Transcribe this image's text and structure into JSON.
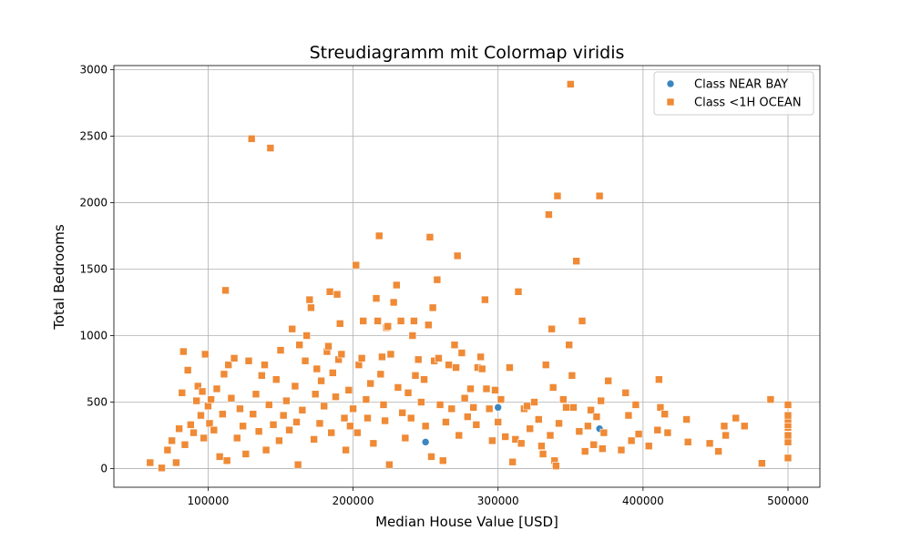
{
  "chart_data": {
    "type": "scatter",
    "title": "Streudiagramm mit Colormap viridis",
    "xlabel": "Median House Value [USD]",
    "ylabel": "Total Bedrooms",
    "xlim": [
      35000,
      522000
    ],
    "ylim": [
      -140,
      3030
    ],
    "xticks": [
      100000,
      200000,
      300000,
      400000,
      500000
    ],
    "xtick_labels": [
      "100000",
      "200000",
      "300000",
      "400000",
      "500000"
    ],
    "yticks": [
      0,
      500,
      1000,
      1500,
      2000,
      2500,
      3000
    ],
    "ytick_labels": [
      "0",
      "500",
      "1000",
      "1500",
      "2000",
      "2500",
      "3000"
    ],
    "grid": true,
    "legend_position": "top-right",
    "series": [
      {
        "name": "Class NEAR BAY",
        "marker": "circle",
        "color": "#3b86c0",
        "points": [
          [
            370000,
            300
          ],
          [
            300000,
            460
          ],
          [
            250000,
            200
          ]
        ]
      },
      {
        "name": "Class <1H OCEAN",
        "marker": "square",
        "color": "#ef8a36",
        "points": [
          [
            60000,
            45
          ],
          [
            68000,
            5
          ],
          [
            72000,
            140
          ],
          [
            75000,
            210
          ],
          [
            78000,
            45
          ],
          [
            80000,
            300
          ],
          [
            82000,
            570
          ],
          [
            83000,
            880
          ],
          [
            84000,
            180
          ],
          [
            86000,
            740
          ],
          [
            88000,
            330
          ],
          [
            90000,
            270
          ],
          [
            92000,
            510
          ],
          [
            93000,
            620
          ],
          [
            95000,
            400
          ],
          [
            96000,
            580
          ],
          [
            97000,
            230
          ],
          [
            98000,
            860
          ],
          [
            100000,
            470
          ],
          [
            101000,
            340
          ],
          [
            102000,
            520
          ],
          [
            104000,
            290
          ],
          [
            106000,
            600
          ],
          [
            108000,
            90
          ],
          [
            110000,
            410
          ],
          [
            111000,
            710
          ],
          [
            112000,
            1340
          ],
          [
            113000,
            60
          ],
          [
            114000,
            780
          ],
          [
            116000,
            530
          ],
          [
            118000,
            830
          ],
          [
            120000,
            230
          ],
          [
            122000,
            450
          ],
          [
            124000,
            320
          ],
          [
            126000,
            110
          ],
          [
            128000,
            810
          ],
          [
            130000,
            2480
          ],
          [
            131000,
            410
          ],
          [
            133000,
            560
          ],
          [
            135000,
            280
          ],
          [
            137000,
            700
          ],
          [
            139000,
            780
          ],
          [
            140000,
            140
          ],
          [
            142000,
            480
          ],
          [
            143000,
            2410
          ],
          [
            145000,
            330
          ],
          [
            147000,
            670
          ],
          [
            149000,
            210
          ],
          [
            150000,
            890
          ],
          [
            152000,
            400
          ],
          [
            154000,
            510
          ],
          [
            156000,
            290
          ],
          [
            158000,
            1050
          ],
          [
            160000,
            620
          ],
          [
            161000,
            350
          ],
          [
            162000,
            30
          ],
          [
            163000,
            930
          ],
          [
            165000,
            440
          ],
          [
            167000,
            810
          ],
          [
            168000,
            1000
          ],
          [
            170000,
            1270
          ],
          [
            171000,
            1210
          ],
          [
            173000,
            220
          ],
          [
            174000,
            560
          ],
          [
            175000,
            750
          ],
          [
            177000,
            340
          ],
          [
            178000,
            660
          ],
          [
            180000,
            470
          ],
          [
            182000,
            880
          ],
          [
            183000,
            920
          ],
          [
            184000,
            1330
          ],
          [
            185000,
            270
          ],
          [
            186000,
            720
          ],
          [
            188000,
            540
          ],
          [
            189000,
            1310
          ],
          [
            190000,
            820
          ],
          [
            191000,
            1090
          ],
          [
            192000,
            860
          ],
          [
            194000,
            380
          ],
          [
            195000,
            140
          ],
          [
            197000,
            590
          ],
          [
            198000,
            320
          ],
          [
            200000,
            450
          ],
          [
            202000,
            1530
          ],
          [
            203000,
            270
          ],
          [
            204000,
            780
          ],
          [
            206000,
            830
          ],
          [
            207000,
            1110
          ],
          [
            209000,
            520
          ],
          [
            210000,
            380
          ],
          [
            212000,
            640
          ],
          [
            214000,
            190
          ],
          [
            216000,
            1280
          ],
          [
            217000,
            1110
          ],
          [
            218000,
            1750
          ],
          [
            219000,
            710
          ],
          [
            220000,
            840
          ],
          [
            221000,
            480
          ],
          [
            222000,
            360
          ],
          [
            223000,
            1060
          ],
          [
            224000,
            1070
          ],
          [
            225000,
            30
          ],
          [
            226000,
            860
          ],
          [
            228000,
            1250
          ],
          [
            230000,
            1380
          ],
          [
            231000,
            610
          ],
          [
            233000,
            1110
          ],
          [
            234000,
            420
          ],
          [
            236000,
            230
          ],
          [
            238000,
            570
          ],
          [
            240000,
            380
          ],
          [
            241000,
            1000
          ],
          [
            242000,
            1110
          ],
          [
            243000,
            700
          ],
          [
            245000,
            820
          ],
          [
            247000,
            500
          ],
          [
            249000,
            670
          ],
          [
            250000,
            320
          ],
          [
            252000,
            1080
          ],
          [
            253000,
            1740
          ],
          [
            254000,
            90
          ],
          [
            255000,
            1210
          ],
          [
            256000,
            810
          ],
          [
            258000,
            1420
          ],
          [
            259000,
            830
          ],
          [
            260000,
            480
          ],
          [
            262000,
            60
          ],
          [
            264000,
            350
          ],
          [
            266000,
            780
          ],
          [
            268000,
            450
          ],
          [
            270000,
            930
          ],
          [
            271000,
            760
          ],
          [
            272000,
            1600
          ],
          [
            273000,
            250
          ],
          [
            275000,
            870
          ],
          [
            277000,
            530
          ],
          [
            279000,
            390
          ],
          [
            281000,
            600
          ],
          [
            283000,
            460
          ],
          [
            285000,
            330
          ],
          [
            286000,
            760
          ],
          [
            288000,
            840
          ],
          [
            289000,
            750
          ],
          [
            291000,
            1270
          ],
          [
            292000,
            600
          ],
          [
            294000,
            450
          ],
          [
            296000,
            210
          ],
          [
            298000,
            590
          ],
          [
            300000,
            350
          ],
          [
            302000,
            520
          ],
          [
            305000,
            240
          ],
          [
            308000,
            760
          ],
          [
            310000,
            50
          ],
          [
            312000,
            220
          ],
          [
            314000,
            1330
          ],
          [
            316000,
            190
          ],
          [
            318000,
            450
          ],
          [
            320000,
            470
          ],
          [
            322000,
            300
          ],
          [
            325000,
            500
          ],
          [
            328000,
            370
          ],
          [
            330000,
            170
          ],
          [
            331000,
            110
          ],
          [
            333000,
            780
          ],
          [
            335000,
            1910
          ],
          [
            336000,
            250
          ],
          [
            337000,
            1050
          ],
          [
            338000,
            610
          ],
          [
            339000,
            60
          ],
          [
            340000,
            20
          ],
          [
            341000,
            2050
          ],
          [
            342000,
            340
          ],
          [
            345000,
            520
          ],
          [
            347000,
            460
          ],
          [
            349000,
            930
          ],
          [
            350000,
            2890
          ],
          [
            351000,
            700
          ],
          [
            352000,
            460
          ],
          [
            354000,
            1560
          ],
          [
            356000,
            280
          ],
          [
            358000,
            1110
          ],
          [
            360000,
            130
          ],
          [
            362000,
            320
          ],
          [
            364000,
            440
          ],
          [
            366000,
            180
          ],
          [
            368000,
            390
          ],
          [
            370000,
            2050
          ],
          [
            371000,
            510
          ],
          [
            372000,
            150
          ],
          [
            373000,
            270
          ],
          [
            376000,
            660
          ],
          [
            385000,
            140
          ],
          [
            388000,
            570
          ],
          [
            390000,
            400
          ],
          [
            392000,
            210
          ],
          [
            395000,
            480
          ],
          [
            397000,
            260
          ],
          [
            404000,
            170
          ],
          [
            410000,
            290
          ],
          [
            411000,
            670
          ],
          [
            412000,
            460
          ],
          [
            415000,
            410
          ],
          [
            417000,
            270
          ],
          [
            430000,
            370
          ],
          [
            431000,
            200
          ],
          [
            446000,
            190
          ],
          [
            452000,
            130
          ],
          [
            456000,
            320
          ],
          [
            457000,
            250
          ],
          [
            464000,
            380
          ],
          [
            470000,
            320
          ],
          [
            482000,
            40
          ],
          [
            488000,
            520
          ],
          [
            500000,
            80
          ],
          [
            500000,
            200
          ],
          [
            500000,
            250
          ],
          [
            500000,
            310
          ],
          [
            500000,
            330
          ],
          [
            500000,
            370
          ],
          [
            500000,
            400
          ],
          [
            500000,
            480
          ]
        ]
      }
    ]
  }
}
